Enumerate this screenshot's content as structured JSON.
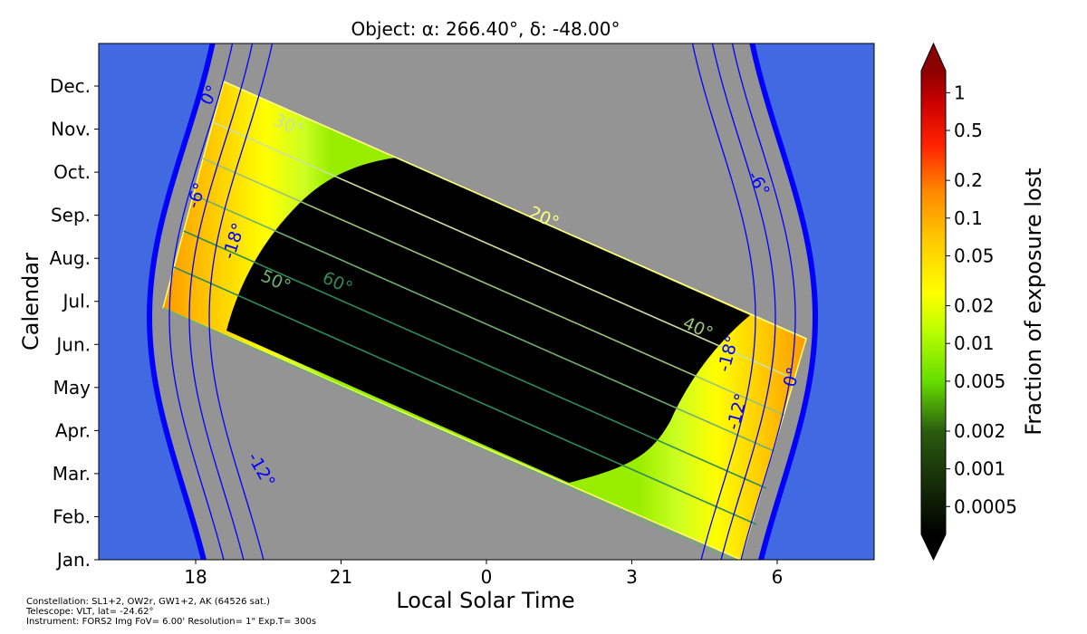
{
  "chart_data": {
    "type": "heatmap",
    "title": "Object:   α: 266.40°, δ: -48.00°",
    "xlabel": "Local Solar Time",
    "ylabel": "Calendar",
    "x_ticks": [
      "18",
      "21",
      "0",
      "3",
      "6"
    ],
    "y_ticks": [
      "Jan.",
      "Feb.",
      "Mar.",
      "Apr.",
      "May",
      "Jun.",
      "Jul.",
      "Aug.",
      "Sep.",
      "Oct.",
      "Nov.",
      "Dec."
    ],
    "xlim_hours_from_midnight": [
      -8,
      8
    ],
    "colorbar": {
      "label": "Fraction of exposure lost",
      "scale": "log",
      "ticks": [
        "1",
        "0.5",
        "0.2",
        "0.1",
        "0.05",
        "0.02",
        "0.01",
        "0.005",
        "0.002",
        "0.001",
        "0.0005"
      ],
      "tick_values": [
        1,
        0.5,
        0.2,
        0.1,
        0.05,
        0.02,
        0.01,
        0.005,
        0.002,
        0.001,
        0.0005
      ],
      "range": [
        0.0003,
        1.5
      ]
    },
    "sun_contours": [
      {
        "label": "0°",
        "color": "#0000ff"
      },
      {
        "label": "-6°",
        "color": "#0000ff"
      },
      {
        "label": "-12°",
        "color": "#0000ff"
      },
      {
        "label": "-18°",
        "color": "#0000ff"
      }
    ],
    "elevation_contours": [
      {
        "label": "20°",
        "color": "#ffff80"
      },
      {
        "label": "30°",
        "color": "#cce0a0"
      },
      {
        "label": "40°",
        "color": "#9ac27a"
      },
      {
        "label": "50°",
        "color": "#6fae6f"
      },
      {
        "label": "60°",
        "color": "#2e8b57"
      }
    ],
    "colors": {
      "daytime": "#4169e1",
      "below_horizon": "#949494",
      "no_loss": "#000000",
      "sun_horizon": "#0000ff"
    }
  },
  "caption": {
    "constellation": "Constellation: SL1+2, OW2r, GW1+2, AK (64526 sat.)",
    "telescope": "Telescope: VLT, lat= -24.62°",
    "instrument": "Instrument: FORS2 Img FoV= 6.00' Resolution= 1\" Exp.T= 300s"
  }
}
